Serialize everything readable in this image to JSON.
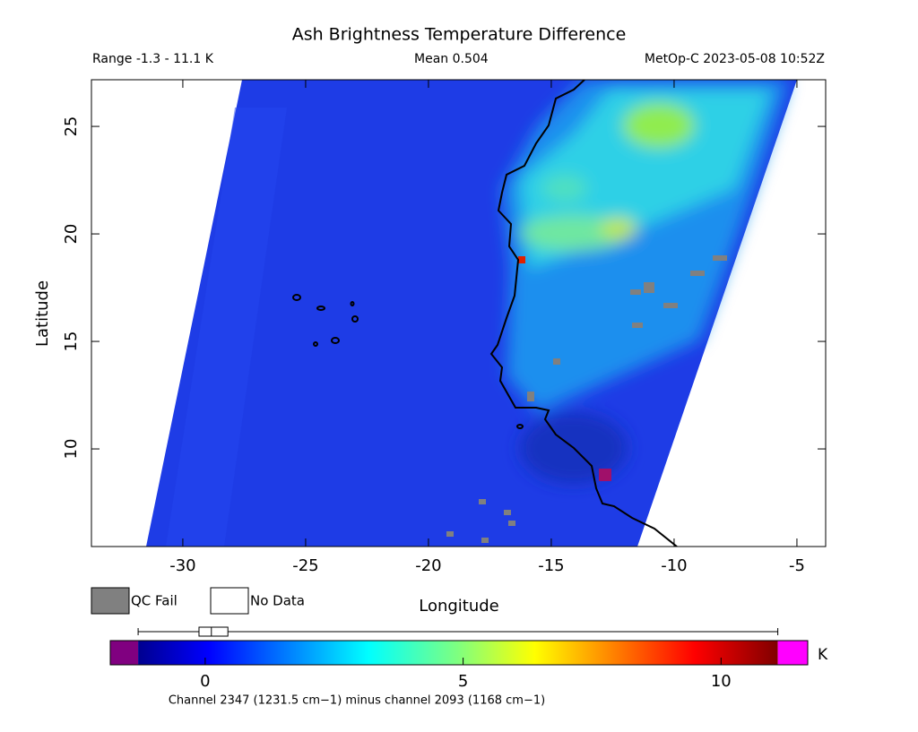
{
  "chart_data": {
    "type": "map",
    "title": "Ash Brightness Temperature Difference",
    "range_text": "Range -1.3 - 11.1 K",
    "mean_text": "Mean 0.504",
    "source_text": "MetOp-C 2023-05-08 10:52Z",
    "x_label": "Longitude",
    "y_label": "Latitude",
    "xlim": [
      -33.72,
      -3.83
    ],
    "xticks": [
      -30,
      -25,
      -20,
      -15,
      -10,
      -5
    ],
    "ylim": [
      5.46,
      27.17
    ],
    "yticks": [
      10,
      15,
      20,
      25
    ],
    "legend": [
      {
        "name": "QC Fail",
        "color": "#808080"
      },
      {
        "name": "No Data",
        "color": "#ffffff"
      }
    ],
    "colorbar": {
      "lim": [
        -1.84,
        11.68
      ],
      "range": [
        -1.3,
        11.1
      ],
      "ticks": [
        0,
        5,
        10
      ],
      "unit": "K",
      "under_color": "#800080",
      "over_color": "#ff00ff",
      "boxplot": {
        "min": -1.3,
        "q1": -0.12,
        "median": 0.12,
        "q3": 0.44,
        "max": 11.1
      }
    },
    "caption": "Channel 2347 (1231.5 cm−1) minus channel 2093 (1168 cm−1)"
  }
}
